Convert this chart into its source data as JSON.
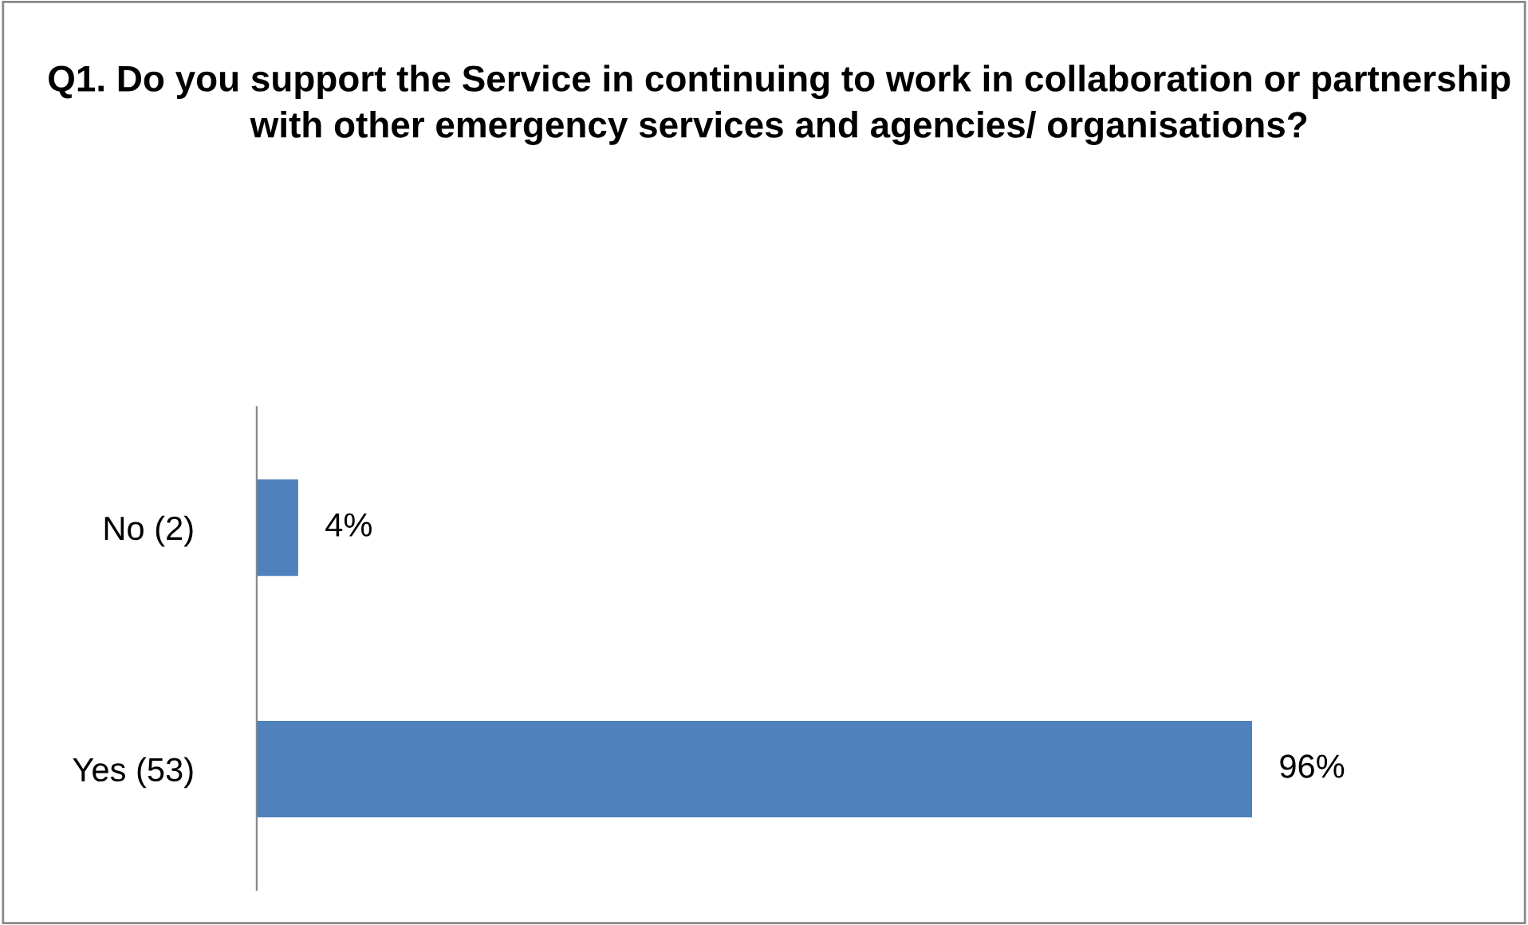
{
  "chart_data": {
    "type": "bar",
    "orientation": "horizontal",
    "title": "Q1. Do you support the Service in continuing to work in collaboration or partnership with other emergency services and agencies/ organisations?",
    "categories": [
      "No (2)",
      "Yes (53)"
    ],
    "values": [
      4,
      96
    ],
    "value_labels": [
      "4%",
      "96%"
    ],
    "color": "#4f81bd",
    "grid": false,
    "legend": false
  }
}
